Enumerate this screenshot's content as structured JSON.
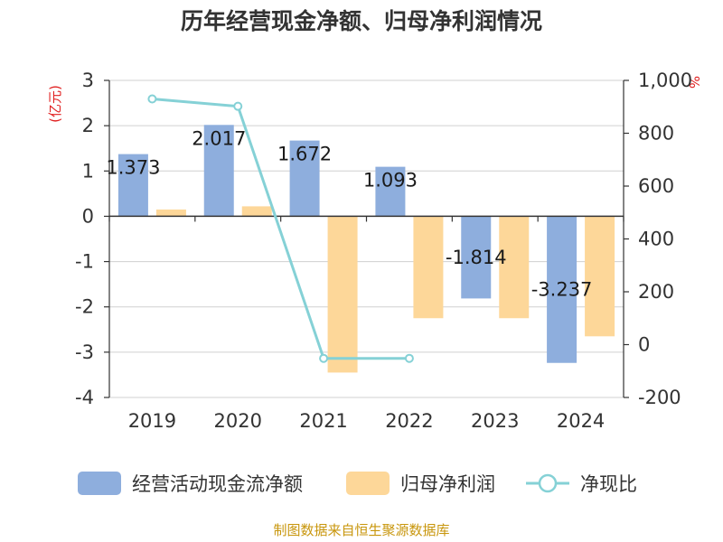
{
  "chart_data": {
    "type": "bar",
    "title": "历年经营现金净额、归母净利润情况",
    "categories": [
      "2019",
      "2020",
      "2021",
      "2022",
      "2023",
      "2024"
    ],
    "series": [
      {
        "name": "经营活动现金流净额",
        "type": "bar",
        "axis": "left",
        "color": "#8eaedd",
        "values": [
          1.373,
          2.017,
          1.672,
          1.093,
          -1.814,
          -3.237
        ],
        "labels": [
          "1.373",
          "2.017",
          "1.672",
          "1.093",
          "-1.814",
          "-3.237"
        ]
      },
      {
        "name": "归母净利润",
        "type": "bar",
        "axis": "left",
        "color": "#fdd799",
        "values": [
          0.15,
          0.22,
          -3.45,
          -2.25,
          -2.25,
          -2.65
        ]
      },
      {
        "name": "净现比",
        "type": "line",
        "axis": "right",
        "color": "#85d1d6",
        "values": [
          930,
          902,
          -52,
          -52,
          null,
          null
        ]
      }
    ],
    "left_axis": {
      "label": "(亿元)",
      "ylim": [
        -4,
        3
      ],
      "ticks": [
        "3",
        "2",
        "1",
        "0",
        "-1",
        "-2",
        "-3",
        "-4"
      ]
    },
    "right_axis": {
      "label": "%",
      "ylim": [
        -200,
        1000
      ],
      "ticks": [
        "1,000",
        "800",
        "600",
        "400",
        "200",
        "0",
        "-200"
      ]
    },
    "grid": true,
    "legend_position": "bottom",
    "source": "制图数据来自恒生聚源数据库"
  }
}
